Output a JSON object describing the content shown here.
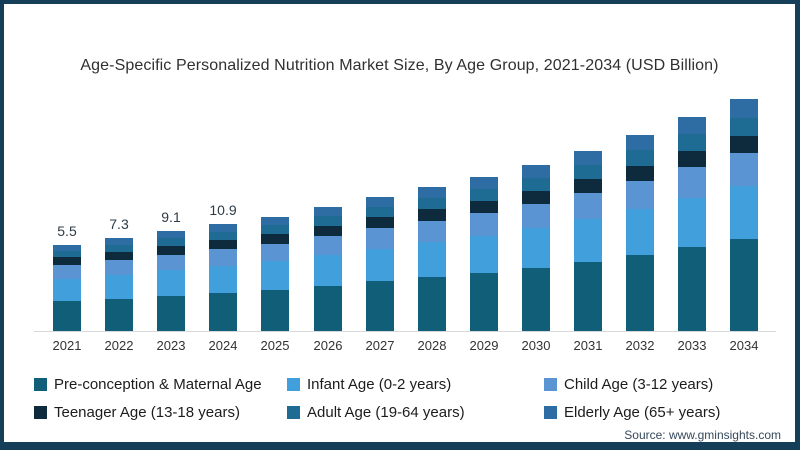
{
  "source": "Source: www.gminsights.com",
  "frame_border_color": "#153f59",
  "chart_data": {
    "type": "bar",
    "stacked": true,
    "title": "Age-Specific Personalized Nutrition Market Size, By Age Group, 2021-2034 (USD Billion)",
    "xlabel": "",
    "ylabel": "USD Billion",
    "grid": false,
    "legend_position": "bottom",
    "y_axis_shown": false,
    "categories": [
      "2021",
      "2022",
      "2023",
      "2024",
      "2025",
      "2026",
      "2027",
      "2028",
      "2029",
      "2030",
      "2031",
      "2032",
      "2033",
      "2034"
    ],
    "series": [
      {
        "name": "Pre-conception & Maternal Age",
        "color": "#115E78",
        "values": [
          1.9,
          2.55,
          3.21,
          3.89,
          4.59,
          5.59,
          6.58,
          7.62,
          8.69,
          9.96,
          11.46,
          13.18,
          15.13,
          17.11
        ]
      },
      {
        "name": "Infant Age (0-2 years)",
        "color": "#41A0DC",
        "values": [
          1.43,
          1.88,
          2.32,
          2.75,
          3.18,
          3.79,
          4.37,
          4.95,
          5.53,
          6.21,
          6.99,
          7.87,
          8.85,
          9.8
        ]
      },
      {
        "name": "Child Age (3-12 years)",
        "color": "#5B94D3",
        "values": [
          0.88,
          1.16,
          1.43,
          1.69,
          1.95,
          2.33,
          2.68,
          3.04,
          3.4,
          3.81,
          4.3,
          4.84,
          5.44,
          6.02
        ]
      },
      {
        "name": "Teenager Age (13-18 years)",
        "color": "#0D2B3C",
        "values": [
          0.5,
          0.65,
          0.8,
          0.94,
          1.08,
          1.28,
          1.47,
          1.66,
          1.84,
          2.06,
          2.31,
          2.59,
          2.89,
          3.18
        ]
      },
      {
        "name": "Adult Age (19-64 years)",
        "color": "#1E6B94",
        "values": [
          0.41,
          0.55,
          0.69,
          0.83,
          0.98,
          1.18,
          1.38,
          1.6,
          1.81,
          2.07,
          2.36,
          2.71,
          3.09,
          3.48
        ]
      },
      {
        "name": "Elderly Age (65+ years)",
        "color": "#2E6DA4",
        "values": [
          0.39,
          0.52,
          0.65,
          0.79,
          0.93,
          1.13,
          1.33,
          1.54,
          1.75,
          2.01,
          2.31,
          2.65,
          3.04,
          3.44
        ]
      }
    ],
    "totals_estimated": [
      5.5,
      7.3,
      9.1,
      10.9,
      12.7,
      15.3,
      17.8,
      20.4,
      23.0,
      26.1,
      29.7,
      33.8,
      38.4,
      43.0
    ],
    "data_labels_shown": {
      "2021": "5.5",
      "2022": "7.3",
      "2023": "9.1",
      "2024": "10.9"
    }
  }
}
